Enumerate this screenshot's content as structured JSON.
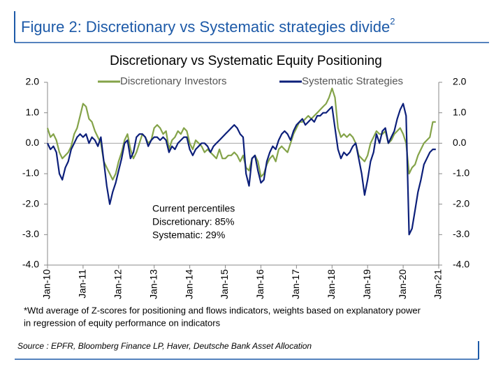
{
  "figure": {
    "title": "Figure 2: Discretionary vs Systematic strategies divide",
    "title_sup": "2"
  },
  "chart_data": {
    "type": "line",
    "title": "Discretionary  vs Systematic Equity Positioning",
    "x": [
      "2010-01",
      "2010-02",
      "2010-03",
      "2010-04",
      "2010-05",
      "2010-06",
      "2010-07",
      "2010-08",
      "2010-09",
      "2010-10",
      "2010-11",
      "2010-12",
      "2011-01",
      "2011-02",
      "2011-03",
      "2011-04",
      "2011-05",
      "2011-06",
      "2011-07",
      "2011-08",
      "2011-09",
      "2011-10",
      "2011-11",
      "2011-12",
      "2012-01",
      "2012-02",
      "2012-03",
      "2012-04",
      "2012-05",
      "2012-06",
      "2012-07",
      "2012-08",
      "2012-09",
      "2012-10",
      "2012-11",
      "2012-12",
      "2013-01",
      "2013-02",
      "2013-03",
      "2013-04",
      "2013-05",
      "2013-06",
      "2013-07",
      "2013-08",
      "2013-09",
      "2013-10",
      "2013-11",
      "2013-12",
      "2014-01",
      "2014-02",
      "2014-03",
      "2014-04",
      "2014-05",
      "2014-06",
      "2014-07",
      "2014-08",
      "2014-09",
      "2014-10",
      "2014-11",
      "2014-12",
      "2015-01",
      "2015-02",
      "2015-03",
      "2015-04",
      "2015-05",
      "2015-06",
      "2015-07",
      "2015-08",
      "2015-09",
      "2015-10",
      "2015-11",
      "2015-12",
      "2016-01",
      "2016-02",
      "2016-03",
      "2016-04",
      "2016-05",
      "2016-06",
      "2016-07",
      "2016-08",
      "2016-09",
      "2016-10",
      "2016-11",
      "2016-12",
      "2017-01",
      "2017-02",
      "2017-03",
      "2017-04",
      "2017-05",
      "2017-06",
      "2017-07",
      "2017-08",
      "2017-09",
      "2017-10",
      "2017-11",
      "2017-12",
      "2018-01",
      "2018-02",
      "2018-03",
      "2018-04",
      "2018-05",
      "2018-06",
      "2018-07",
      "2018-08",
      "2018-09",
      "2018-10",
      "2018-11",
      "2018-12",
      "2019-01",
      "2019-02",
      "2019-03",
      "2019-04",
      "2019-05",
      "2019-06",
      "2019-07",
      "2019-08",
      "2019-09",
      "2019-10",
      "2019-11",
      "2019-12",
      "2020-01",
      "2020-02",
      "2020-03",
      "2020-04",
      "2020-05",
      "2020-06",
      "2020-07",
      "2020-08",
      "2020-09",
      "2020-10",
      "2020-11",
      "2020-12"
    ],
    "series": [
      {
        "name": "Discretionary Investors",
        "color": "#84a349",
        "values": [
          0.5,
          0.2,
          0.3,
          0.1,
          -0.3,
          -0.5,
          -0.4,
          -0.3,
          -0.1,
          0.3,
          0.5,
          0.9,
          1.3,
          1.2,
          0.8,
          0.7,
          0.4,
          0.2,
          0.0,
          -0.6,
          -0.8,
          -1.0,
          -1.2,
          -1.0,
          -0.6,
          -0.3,
          0.1,
          0.3,
          -0.2,
          -0.5,
          -0.3,
          0.0,
          0.3,
          0.2,
          0.0,
          0.1,
          0.5,
          0.6,
          0.5,
          0.3,
          0.4,
          -0.2,
          0.1,
          0.2,
          0.4,
          0.3,
          0.5,
          0.4,
          0.0,
          -0.2,
          0.1,
          0.0,
          -0.1,
          -0.3,
          -0.2,
          -0.3,
          -0.4,
          -0.5,
          -0.2,
          -0.5,
          -0.5,
          -0.4,
          -0.4,
          -0.3,
          -0.4,
          -0.6,
          -0.4,
          -0.8,
          -0.9,
          -0.5,
          -0.4,
          -0.6,
          -1.1,
          -1.0,
          -0.7,
          -0.5,
          -0.4,
          -0.6,
          -0.2,
          -0.1,
          -0.2,
          -0.3,
          0.0,
          0.3,
          0.5,
          0.7,
          0.7,
          0.8,
          0.9,
          0.8,
          0.9,
          1.0,
          1.1,
          1.2,
          1.3,
          1.5,
          1.8,
          1.5,
          0.5,
          0.2,
          0.3,
          0.2,
          0.3,
          0.2,
          0.0,
          -0.4,
          -0.5,
          -0.6,
          -0.4,
          0.0,
          0.2,
          0.4,
          0.3,
          0.3,
          0.4,
          0.0,
          0.1,
          0.3,
          0.4,
          0.5,
          0.3,
          0.0,
          -1.0,
          -0.8,
          -0.7,
          -0.4,
          -0.2,
          0.0,
          0.1,
          0.2,
          0.7,
          0.7
        ]
      },
      {
        "name": "Systematic Strategies",
        "color": "#0c1f7a",
        "values": [
          0.0,
          -0.2,
          -0.1,
          -0.3,
          -1.0,
          -1.2,
          -0.8,
          -0.6,
          -0.2,
          0.0,
          0.2,
          0.3,
          0.2,
          0.3,
          0.0,
          0.2,
          0.1,
          -0.1,
          0.2,
          -0.6,
          -1.4,
          -2.0,
          -1.6,
          -1.3,
          -0.9,
          -0.5,
          0.0,
          0.1,
          -0.5,
          -0.3,
          0.2,
          0.3,
          0.3,
          0.2,
          -0.1,
          0.1,
          0.2,
          0.2,
          0.1,
          0.2,
          0.1,
          -0.3,
          -0.1,
          -0.2,
          0.0,
          0.1,
          0.2,
          0.2,
          -0.2,
          -0.4,
          -0.2,
          -0.1,
          0.0,
          0.0,
          -0.1,
          -0.3,
          -0.1,
          0.0,
          0.1,
          0.2,
          0.3,
          0.4,
          0.5,
          0.6,
          0.5,
          0.3,
          0.2,
          -1.0,
          -1.4,
          -0.5,
          -0.4,
          -0.9,
          -1.3,
          -1.2,
          -0.6,
          -0.3,
          -0.1,
          -0.2,
          0.1,
          0.3,
          0.4,
          0.3,
          0.1,
          0.4,
          0.6,
          0.7,
          0.8,
          0.6,
          0.7,
          0.8,
          0.7,
          0.9,
          0.9,
          1.0,
          1.0,
          1.1,
          1.2,
          0.5,
          -0.2,
          -0.5,
          -0.3,
          -0.4,
          -0.3,
          -0.1,
          0.0,
          -0.5,
          -1.0,
          -1.7,
          -1.2,
          -0.6,
          -0.3,
          0.3,
          0.0,
          0.4,
          0.5,
          0.0,
          0.2,
          0.4,
          0.8,
          1.1,
          1.3,
          0.9,
          -3.0,
          -2.8,
          -2.2,
          -1.6,
          -1.2,
          -0.7,
          -0.5,
          -0.3,
          -0.2,
          -0.2
        ]
      }
    ],
    "xlim": [
      "2010-01",
      "2021-01"
    ],
    "xticks": [
      {
        "value": "2010-01",
        "label": "Jan-10"
      },
      {
        "value": "2011-01",
        "label": "Jan-11"
      },
      {
        "value": "2012-01",
        "label": "Jan-12"
      },
      {
        "value": "2013-01",
        "label": "Jan-13"
      },
      {
        "value": "2014-01",
        "label": "Jan-14"
      },
      {
        "value": "2015-01",
        "label": "Jan-15"
      },
      {
        "value": "2016-01",
        "label": "Jan-16"
      },
      {
        "value": "2017-01",
        "label": "Jan-17"
      },
      {
        "value": "2018-01",
        "label": "Jan-18"
      },
      {
        "value": "2019-01",
        "label": "Jan-19"
      },
      {
        "value": "2020-01",
        "label": "Jan-20"
      },
      {
        "value": "2021-01",
        "label": "Jan-21"
      }
    ],
    "ylim": [
      -4,
      2
    ],
    "yticks": [
      {
        "value": 2,
        "label": "2.0"
      },
      {
        "value": 1,
        "label": "1.0"
      },
      {
        "value": 0,
        "label": "0.0"
      },
      {
        "value": -1,
        "label": "-1.0"
      },
      {
        "value": -2,
        "label": "-2.0"
      },
      {
        "value": -3,
        "label": "-3.0"
      },
      {
        "value": -4,
        "label": "-4.0"
      }
    ],
    "y2lim": [
      -4,
      2
    ],
    "y2ticks": [
      {
        "value": 2,
        "label": "2.0"
      },
      {
        "value": 1,
        "label": "1.0"
      },
      {
        "value": 0,
        "label": "0.0"
      },
      {
        "value": -1,
        "label": "-1.0"
      },
      {
        "value": -2,
        "label": "-2.0"
      },
      {
        "value": -3,
        "label": "-3.0"
      },
      {
        "value": -4,
        "label": "-4.0"
      }
    ],
    "annotations": [
      "Current percentiles",
      "Discretionary: 85%",
      "Systematic: 29%"
    ],
    "legend": "top"
  },
  "footnote": [
    "*Wtd average of Z-scores for positioning and flows indicators, weights based on explanatory power",
    "in regression of equity performance on indicators"
  ],
  "source": "Source : EPFR, Bloomberg Finance LP, Haver, Deutsche Bank Asset Allocation"
}
